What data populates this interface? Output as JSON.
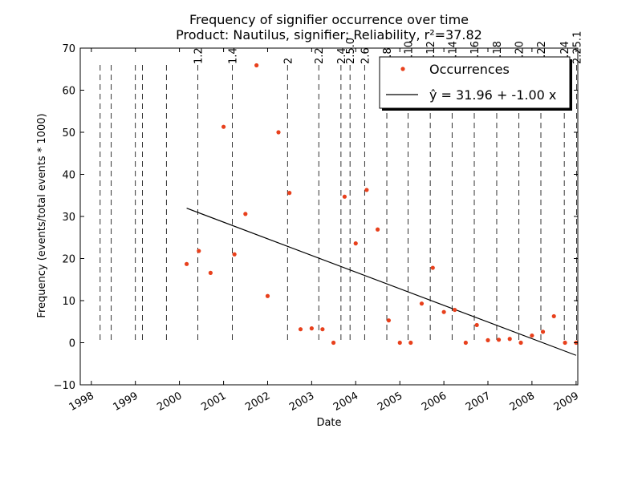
{
  "chart_data": {
    "type": "scatter",
    "title": "Frequency of signifier occurrence over time",
    "subtitle": "Product: Nautilus, signifier: Reliability, r²=37.82",
    "xlabel": "Date",
    "ylabel": "Frequency (events/total events * 1000)",
    "xlim": [
      "1997-10-01",
      "2009-01-15"
    ],
    "ylim": [
      -10,
      70
    ],
    "yticks": [
      -10,
      0,
      10,
      20,
      30,
      40,
      50,
      60,
      70
    ],
    "ytick_labels": [
      "−10",
      "0",
      "10",
      "20",
      "30",
      "40",
      "50",
      "60",
      "70"
    ],
    "xticks": [
      {
        "date": "1998-01-01",
        "label": "1998"
      },
      {
        "date": "1999-01-01",
        "label": "1999"
      },
      {
        "date": "2000-01-01",
        "label": "2000"
      },
      {
        "date": "2001-01-01",
        "label": "2001"
      },
      {
        "date": "2002-01-01",
        "label": "2002"
      },
      {
        "date": "2003-01-01",
        "label": "2003"
      },
      {
        "date": "2004-01-01",
        "label": "2004"
      },
      {
        "date": "2005-01-01",
        "label": "2005"
      },
      {
        "date": "2006-01-01",
        "label": "2006"
      },
      {
        "date": "2007-01-01",
        "label": "2007"
      },
      {
        "date": "2008-01-01",
        "label": "2008"
      },
      {
        "date": "2009-01-01",
        "label": "2009"
      }
    ],
    "release_lines": [
      {
        "date": "1998-03-15",
        "label": ""
      },
      {
        "date": "1998-06-15",
        "label": ""
      },
      {
        "date": "1999-01-01",
        "label": ""
      },
      {
        "date": "1999-03-01",
        "label": ""
      },
      {
        "date": "1999-09-15",
        "label": ""
      },
      {
        "date": "2000-06-01",
        "label": "1.2"
      },
      {
        "date": "2001-03-15",
        "label": "1.4"
      },
      {
        "date": "2002-06-15",
        "label": "2"
      },
      {
        "date": "2003-03-01",
        "label": "2.2"
      },
      {
        "date": "2003-09-01",
        "label": "2.4"
      },
      {
        "date": "2003-11-15",
        "label": "2.5.0"
      },
      {
        "date": "2004-03-15",
        "label": "2.6"
      },
      {
        "date": "2004-09-15",
        "label": "2.8"
      },
      {
        "date": "2005-03-10",
        "label": "2.10"
      },
      {
        "date": "2005-09-10",
        "label": "2.12"
      },
      {
        "date": "2006-03-10",
        "label": "2.14"
      },
      {
        "date": "2006-09-10",
        "label": "2.16"
      },
      {
        "date": "2007-03-15",
        "label": "2.18"
      },
      {
        "date": "2007-09-15",
        "label": "2.20"
      },
      {
        "date": "2008-03-15",
        "label": "2.22"
      },
      {
        "date": "2008-09-25",
        "label": "2.24"
      },
      {
        "date": "2009-01-05",
        "label": "2.25.1"
      }
    ],
    "series": [
      {
        "name": "Occurrences",
        "kind": "points",
        "color": "#e8401c",
        "points": [
          {
            "x": "2000-03-01",
            "y": 18.7
          },
          {
            "x": "2000-06-10",
            "y": 21.8
          },
          {
            "x": "2000-09-15",
            "y": 16.6
          },
          {
            "x": "2001-01-01",
            "y": 51.3
          },
          {
            "x": "2001-04-01",
            "y": 21.0
          },
          {
            "x": "2001-07-01",
            "y": 30.6
          },
          {
            "x": "2001-10-01",
            "y": 65.9
          },
          {
            "x": "2002-01-01",
            "y": 11.1
          },
          {
            "x": "2002-04-01",
            "y": 50.0
          },
          {
            "x": "2002-07-01",
            "y": 35.6
          },
          {
            "x": "2002-10-01",
            "y": 3.2
          },
          {
            "x": "2003-01-01",
            "y": 3.4
          },
          {
            "x": "2003-04-01",
            "y": 3.2
          },
          {
            "x": "2003-07-01",
            "y": 0.0
          },
          {
            "x": "2003-10-01",
            "y": 34.7
          },
          {
            "x": "2004-01-01",
            "y": 23.6
          },
          {
            "x": "2004-04-01",
            "y": 36.3
          },
          {
            "x": "2004-07-01",
            "y": 26.9
          },
          {
            "x": "2004-10-01",
            "y": 5.3
          },
          {
            "x": "2005-01-01",
            "y": 0.0
          },
          {
            "x": "2005-04-01",
            "y": 0.0
          },
          {
            "x": "2005-07-01",
            "y": 9.3
          },
          {
            "x": "2005-10-01",
            "y": 17.8
          },
          {
            "x": "2006-01-01",
            "y": 7.3
          },
          {
            "x": "2006-04-01",
            "y": 7.8
          },
          {
            "x": "2006-07-01",
            "y": 0.0
          },
          {
            "x": "2006-10-01",
            "y": 4.2
          },
          {
            "x": "2007-01-01",
            "y": 0.6
          },
          {
            "x": "2007-04-01",
            "y": 0.7
          },
          {
            "x": "2007-07-01",
            "y": 0.9
          },
          {
            "x": "2007-10-01",
            "y": 0.0
          },
          {
            "x": "2008-01-01",
            "y": 1.7
          },
          {
            "x": "2008-04-01",
            "y": 2.6
          },
          {
            "x": "2008-07-01",
            "y": 6.3
          },
          {
            "x": "2008-10-01",
            "y": 0.0
          },
          {
            "x": "2009-01-01",
            "y": 0.0
          }
        ]
      },
      {
        "name": "ŷ = 31.96 + -1.00 x",
        "kind": "line",
        "color": "#000000",
        "points": [
          {
            "x": "2000-03-01",
            "y": 31.96
          },
          {
            "x": "2009-01-01",
            "y": -3.0
          }
        ]
      }
    ],
    "legend": {
      "position": "top-right",
      "entries": [
        "Occurrences",
        "ŷ = 31.96 + -1.00 x"
      ]
    },
    "grid": false
  }
}
